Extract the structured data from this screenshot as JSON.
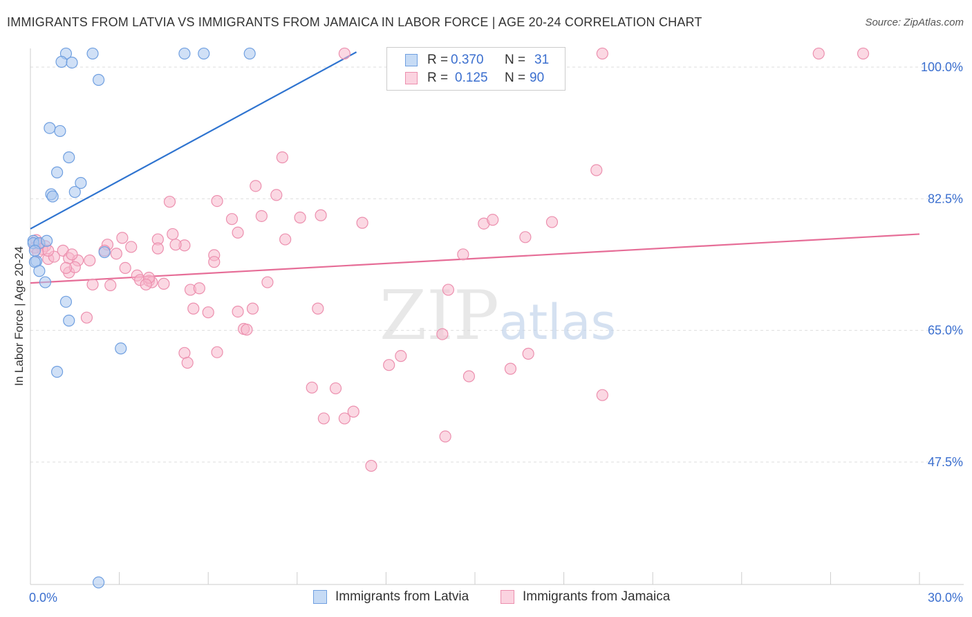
{
  "chart_data": {
    "type": "scatter",
    "title": "IMMIGRANTS FROM LATVIA VS IMMIGRANTS FROM JAMAICA IN LABOR FORCE | AGE 20-24 CORRELATION CHART",
    "source": "Source: ZipAtlas.com",
    "xlabel": "",
    "ylabel": "In Labor Force | Age 20-24",
    "xlim": [
      0,
      30
    ],
    "ylim": [
      32.5,
      102
    ],
    "x_tick_labels": [
      "0.0%",
      "30.0%"
    ],
    "y_ticks": [
      100.0,
      82.5,
      65.0,
      47.5
    ],
    "y_tick_labels": [
      "100.0%",
      "82.5%",
      "65.0%",
      "47.5%"
    ],
    "watermark": "ZIPatlas",
    "colors": {
      "latvia_fill": "#a9c7ef",
      "latvia_stroke": "#6f9fe0",
      "latvia_line": "#2f74d0",
      "jamaica_fill": "#f7b8cc",
      "jamaica_stroke": "#ec8fae",
      "jamaica_line": "#e66d97",
      "tick_label": "#3b6fcf"
    },
    "legend": {
      "r_label": "R =",
      "n_label": "N =",
      "latvia": {
        "r": "0.370",
        "n": "31"
      },
      "jamaica": {
        "r": "0.125",
        "n": "90"
      }
    },
    "series": [
      {
        "name": "Immigrants from Latvia",
        "trend": {
          "x": [
            0.0,
            11.0
          ],
          "y": [
            78.5,
            102.0
          ]
        },
        "points": [
          [
            1.2,
            101.8
          ],
          [
            1.05,
            100.7
          ],
          [
            1.4,
            100.6
          ],
          [
            2.1,
            101.8
          ],
          [
            2.3,
            98.3
          ],
          [
            5.2,
            101.8
          ],
          [
            5.85,
            101.8
          ],
          [
            7.4,
            101.8
          ],
          [
            0.65,
            91.9
          ],
          [
            1.0,
            91.5
          ],
          [
            1.3,
            88.0
          ],
          [
            0.9,
            86.0
          ],
          [
            1.7,
            84.6
          ],
          [
            0.7,
            83.1
          ],
          [
            1.5,
            83.4
          ],
          [
            0.75,
            82.8
          ],
          [
            0.1,
            76.9
          ],
          [
            0.1,
            76.6
          ],
          [
            0.3,
            76.6
          ],
          [
            0.55,
            76.9
          ],
          [
            0.2,
            74.2
          ],
          [
            0.15,
            74.1
          ],
          [
            0.3,
            72.9
          ],
          [
            2.5,
            75.4
          ],
          [
            0.5,
            71.4
          ],
          [
            1.2,
            68.8
          ],
          [
            1.3,
            66.3
          ],
          [
            3.05,
            62.6
          ],
          [
            0.9,
            59.5
          ],
          [
            2.3,
            31.5
          ],
          [
            0.15,
            75.6
          ]
        ]
      },
      {
        "name": "Immigrants from Jamaica",
        "trend": {
          "x": [
            0.0,
            30.0
          ],
          "y": [
            71.3,
            77.8
          ]
        },
        "points": [
          [
            10.6,
            101.8
          ],
          [
            19.3,
            101.8
          ],
          [
            26.6,
            101.8
          ],
          [
            28.1,
            101.8
          ],
          [
            8.5,
            88.0
          ],
          [
            19.1,
            86.3
          ],
          [
            7.6,
            84.2
          ],
          [
            8.3,
            83.0
          ],
          [
            4.7,
            82.1
          ],
          [
            6.3,
            82.2
          ],
          [
            7.8,
            80.2
          ],
          [
            9.1,
            80.0
          ],
          [
            9.8,
            80.3
          ],
          [
            6.8,
            79.8
          ],
          [
            11.2,
            79.3
          ],
          [
            15.3,
            79.2
          ],
          [
            15.6,
            79.7
          ],
          [
            17.6,
            79.4
          ],
          [
            7.0,
            78.0
          ],
          [
            16.7,
            77.4
          ],
          [
            3.1,
            77.3
          ],
          [
            4.8,
            77.8
          ],
          [
            4.3,
            77.1
          ],
          [
            8.6,
            77.1
          ],
          [
            2.6,
            76.4
          ],
          [
            5.2,
            76.3
          ],
          [
            4.9,
            76.4
          ],
          [
            3.4,
            76.1
          ],
          [
            0.2,
            77.0
          ],
          [
            0.3,
            76.5
          ],
          [
            0.5,
            76.2
          ],
          [
            0.4,
            75.8
          ],
          [
            1.1,
            75.6
          ],
          [
            1.3,
            74.6
          ],
          [
            1.6,
            74.3
          ],
          [
            2.0,
            74.3
          ],
          [
            2.5,
            75.6
          ],
          [
            2.9,
            75.2
          ],
          [
            4.3,
            75.9
          ],
          [
            6.2,
            75.0
          ],
          [
            6.2,
            74.1
          ],
          [
            0.6,
            74.5
          ],
          [
            0.8,
            74.8
          ],
          [
            1.4,
            75.1
          ],
          [
            14.6,
            75.1
          ],
          [
            0.6,
            75.6
          ],
          [
            3.2,
            73.3
          ],
          [
            1.3,
            72.7
          ],
          [
            1.5,
            73.4
          ],
          [
            3.6,
            72.3
          ],
          [
            3.7,
            71.7
          ],
          [
            4.0,
            71.6
          ],
          [
            4.1,
            71.4
          ],
          [
            4.0,
            72.0
          ],
          [
            4.5,
            71.2
          ],
          [
            2.1,
            71.1
          ],
          [
            2.7,
            71.0
          ],
          [
            3.9,
            71.1
          ],
          [
            8.0,
            71.4
          ],
          [
            5.4,
            70.4
          ],
          [
            5.7,
            70.6
          ],
          [
            14.1,
            70.4
          ],
          [
            5.5,
            67.9
          ],
          [
            6.0,
            67.4
          ],
          [
            7.0,
            67.5
          ],
          [
            7.5,
            67.9
          ],
          [
            9.7,
            67.9
          ],
          [
            1.9,
            66.7
          ],
          [
            7.2,
            65.2
          ],
          [
            7.3,
            65.1
          ],
          [
            13.9,
            64.5
          ],
          [
            5.2,
            62.0
          ],
          [
            6.3,
            62.1
          ],
          [
            16.8,
            61.9
          ],
          [
            12.5,
            61.6
          ],
          [
            5.3,
            60.7
          ],
          [
            12.1,
            60.4
          ],
          [
            16.2,
            59.9
          ],
          [
            14.8,
            58.9
          ],
          [
            9.5,
            57.4
          ],
          [
            10.3,
            57.3
          ],
          [
            19.3,
            56.4
          ],
          [
            10.9,
            54.2
          ],
          [
            9.9,
            53.3
          ],
          [
            10.6,
            53.3
          ],
          [
            14.0,
            50.9
          ],
          [
            11.5,
            47.0
          ],
          [
            0.15,
            76.0
          ],
          [
            0.25,
            75.4
          ],
          [
            1.2,
            73.3
          ]
        ]
      }
    ]
  },
  "bottom_legend": {
    "latvia": "Immigrants from Latvia",
    "jamaica": "Immigrants from Jamaica"
  }
}
